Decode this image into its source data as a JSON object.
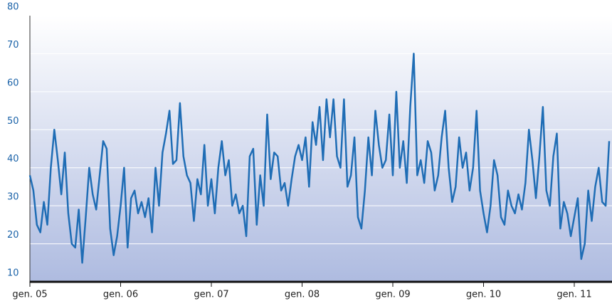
{
  "chart_data": {
    "type": "line",
    "categories": [
      "gen. 05",
      null,
      null,
      null,
      null,
      null,
      null,
      null,
      null,
      null,
      null,
      null,
      null,
      null,
      null,
      null,
      null,
      null,
      null,
      null,
      null,
      null,
      null,
      null,
      null,
      null,
      "gen. 06",
      null,
      null,
      null,
      null,
      null,
      null,
      null,
      null,
      null,
      null,
      null,
      null,
      null,
      null,
      null,
      null,
      null,
      null,
      null,
      null,
      null,
      null,
      null,
      null,
      null,
      "gen. 07",
      null,
      null,
      null,
      null,
      null,
      null,
      null,
      null,
      null,
      null,
      null,
      null,
      null,
      null,
      null,
      null,
      null,
      null,
      null,
      null,
      null,
      null,
      null,
      null,
      null,
      "gen. 08",
      null,
      null,
      null,
      null,
      null,
      null,
      null,
      null,
      null,
      null,
      null,
      null,
      null,
      null,
      null,
      null,
      null,
      null,
      null,
      null,
      null,
      null,
      null,
      null,
      null,
      "gen. 09",
      null,
      null,
      null,
      null,
      null,
      null,
      null,
      null,
      null,
      null,
      null,
      null,
      null,
      null,
      null,
      null,
      null,
      null,
      null,
      null,
      null,
      null,
      null,
      null,
      null,
      "gen. 10",
      null,
      null,
      null,
      null,
      null,
      null,
      null,
      null,
      null,
      null,
      null,
      null,
      null,
      null,
      null,
      null,
      null,
      null,
      null,
      null,
      null,
      null,
      null,
      null,
      null,
      "gen. 11",
      null,
      null,
      null,
      null,
      null,
      null,
      null,
      null,
      null,
      null
    ],
    "values": [
      38,
      34,
      25,
      23,
      31,
      25,
      40,
      50,
      42,
      33,
      44,
      28,
      20,
      19,
      29,
      15,
      27,
      40,
      33,
      29,
      38,
      47,
      45,
      24,
      17,
      22,
      30,
      40,
      19,
      32,
      34,
      28,
      31,
      27,
      32,
      23,
      40,
      30,
      44,
      49,
      55,
      41,
      42,
      57,
      43,
      38,
      36,
      26,
      37,
      33,
      46,
      30,
      37,
      28,
      40,
      47,
      38,
      42,
      30,
      33,
      28,
      30,
      22,
      43,
      45,
      25,
      38,
      30,
      54,
      37,
      44,
      43,
      34,
      36,
      30,
      37,
      43,
      46,
      42,
      48,
      35,
      52,
      46,
      56,
      42,
      58,
      48,
      58,
      43,
      40,
      58,
      35,
      38,
      48,
      27,
      24,
      34,
      48,
      38,
      55,
      46,
      40,
      42,
      54,
      38,
      60,
      40,
      47,
      36,
      56,
      70,
      38,
      42,
      36,
      47,
      44,
      34,
      38,
      48,
      55,
      40,
      31,
      35,
      48,
      40,
      44,
      34,
      40,
      55,
      34,
      28,
      23,
      30,
      42,
      38,
      27,
      25,
      34,
      30,
      28,
      33,
      29,
      36,
      50,
      42,
      32,
      43,
      56,
      34,
      30,
      43,
      49,
      24,
      31,
      28,
      22,
      27,
      32,
      16,
      20,
      34,
      26,
      35,
      40,
      31,
      30,
      47
    ],
    "color": "#1f6db5",
    "ylim": [
      10,
      80
    ],
    "yticks": [
      10,
      20,
      30,
      40,
      50,
      60,
      70,
      80
    ],
    "grid": true
  }
}
